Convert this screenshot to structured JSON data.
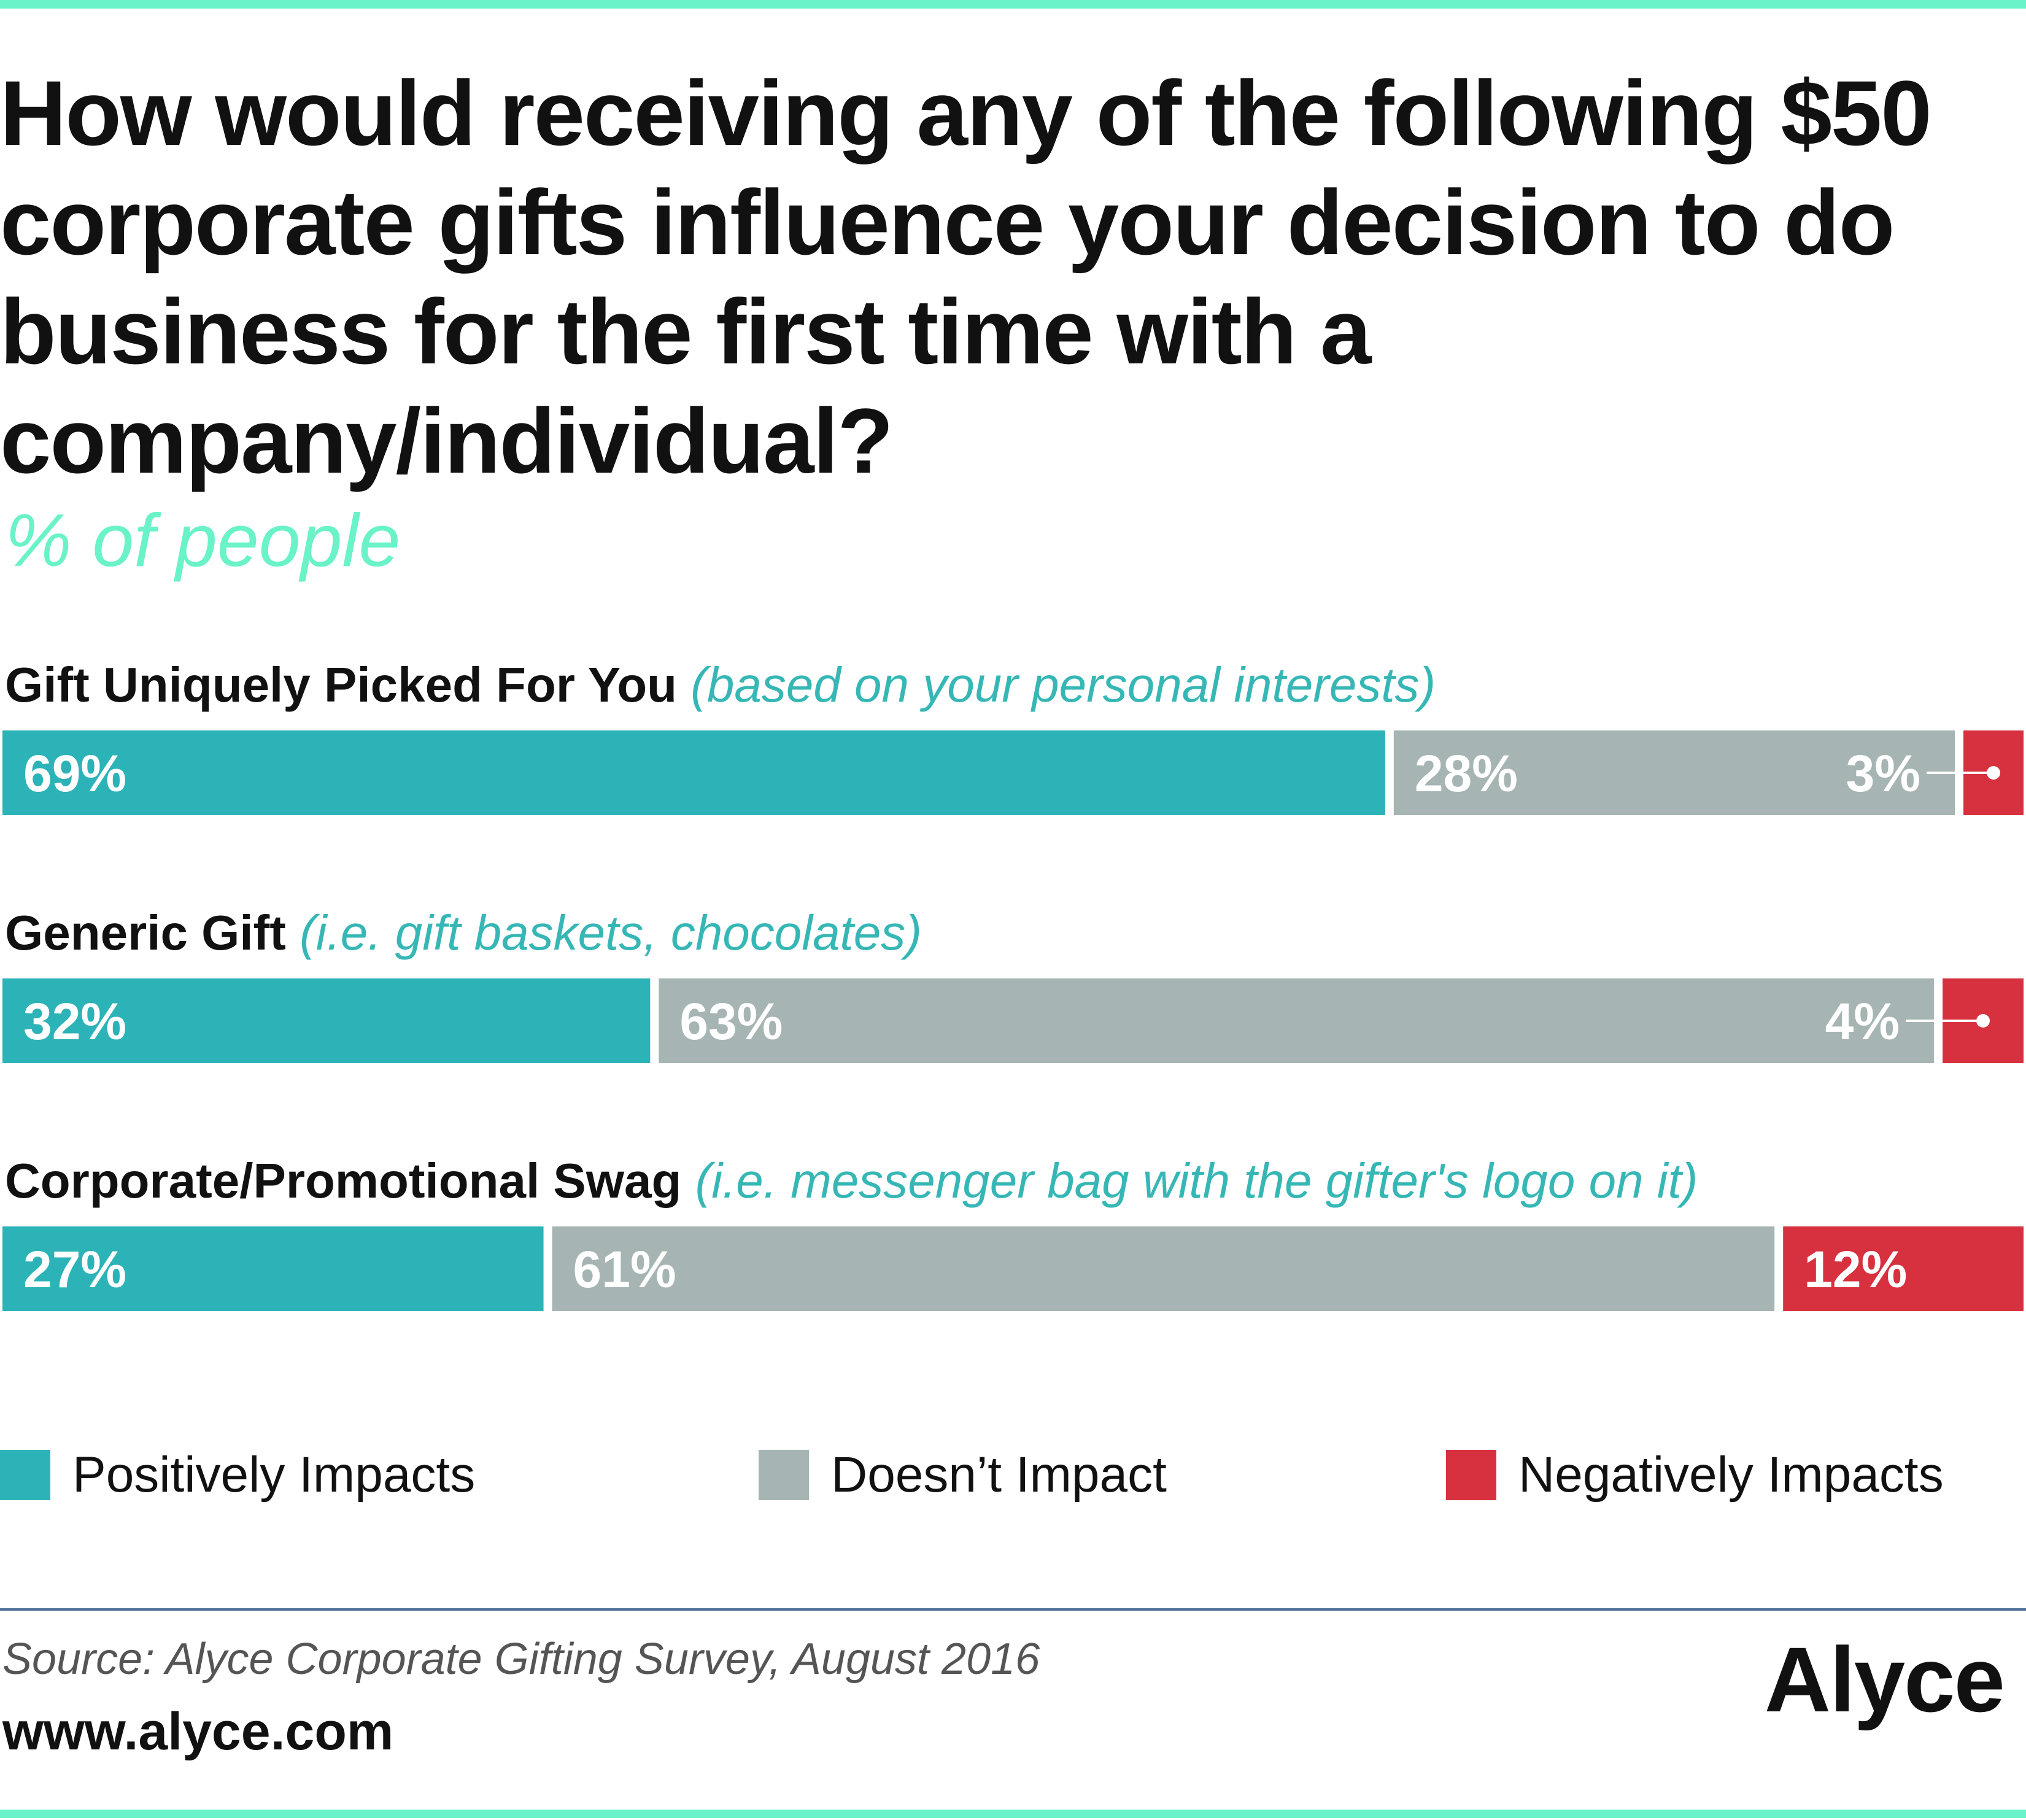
{
  "header": {
    "title": "How would receiving any of the following $50 corporate gifts influence your decision to do business for the first time with a company/individual?",
    "subtitle": "% of people"
  },
  "rows": [
    {
      "label": "Gift Uniquely Picked For You",
      "note": "(based on your personal interests)"
    },
    {
      "label": "Generic Gift",
      "note": "(i.e. gift baskets, chocolates)"
    },
    {
      "label": "Corporate/Promotional Swag",
      "note": "(i.e. messenger bag with the gifter's logo on it)"
    }
  ],
  "legend": [
    {
      "label": "Positively Impacts",
      "color": "#2cb3b7"
    },
    {
      "label": "Doesn’t Impact",
      "color": "#a6b5b3"
    },
    {
      "label": "Negatively Impacts",
      "color": "#d7303f"
    }
  ],
  "footer": {
    "source": "Source: Alyce Corporate Gifting Survey, August 2016",
    "website": "www.alyce.com",
    "brand": "Alyce"
  },
  "chart_data": {
    "type": "bar",
    "orientation": "horizontal",
    "stacked": true,
    "categories": [
      "Gift Uniquely Picked For You",
      "Generic Gift",
      "Corporate/Promotional Swag"
    ],
    "series": [
      {
        "name": "Positively Impacts",
        "values": [
          69,
          32,
          27
        ],
        "labels": [
          "69%",
          "32%",
          "27%"
        ],
        "color": "#2cb3b7"
      },
      {
        "name": "Doesn’t Impact",
        "values": [
          28,
          63,
          61
        ],
        "labels": [
          "28%",
          "63%",
          "61%"
        ],
        "color": "#a6b5b3"
      },
      {
        "name": "Negatively Impacts",
        "values": [
          3,
          4,
          12
        ],
        "labels": [
          "3%",
          "4%",
          "12%"
        ],
        "color": "#d7303f"
      }
    ],
    "title": "How would receiving any of the following $50 corporate gifts influence your decision to do business for the first time with a company/individual?",
    "subtitle": "% of people",
    "xlim": [
      0,
      100
    ],
    "grid": false,
    "legend_position": "bottom"
  }
}
